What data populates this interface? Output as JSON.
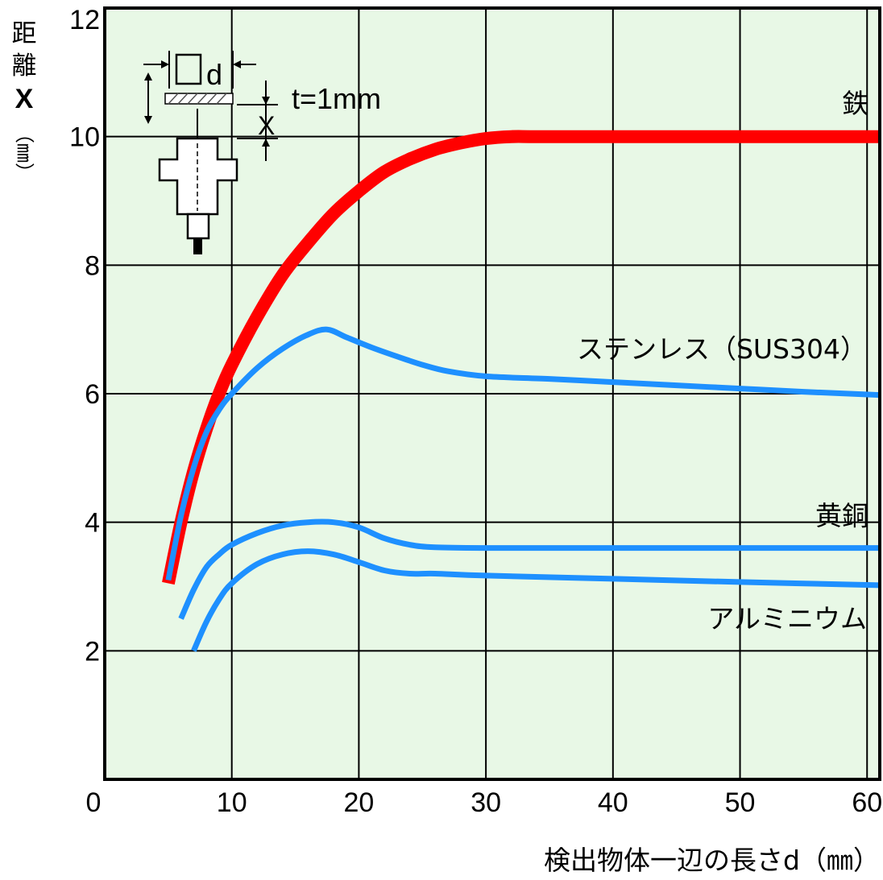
{
  "chart_data": {
    "type": "line",
    "xlabel": "検出物体一辺の長さd（㎜）",
    "ylabel": [
      "距",
      "離",
      "X",
      "（㎜）"
    ],
    "xlim": [
      0,
      61
    ],
    "ylim": [
      0,
      12
    ],
    "xticks": [
      "0",
      "10",
      "20",
      "30",
      "40",
      "50",
      "60"
    ],
    "yticks": [
      "2",
      "4",
      "6",
      "8",
      "10",
      "12"
    ],
    "grid": true,
    "background_color": "#e8f8e6",
    "series": [
      {
        "name": "鉄",
        "color": "#ff0000",
        "x": [
          5,
          6,
          7,
          8,
          9,
          10,
          12,
          14,
          16,
          18,
          20,
          22,
          24,
          26,
          28,
          30,
          32,
          34,
          40,
          50,
          61
        ],
        "y": [
          3.05,
          4.0,
          4.8,
          5.45,
          6.0,
          6.45,
          7.2,
          7.85,
          8.35,
          8.8,
          9.15,
          9.45,
          9.65,
          9.8,
          9.9,
          9.97,
          10.0,
          10.0,
          10.0,
          10.0,
          10.0
        ]
      },
      {
        "name": "ステンレス（SUS304）",
        "color": "#1e90ff",
        "x": [
          5,
          6,
          7,
          8,
          9,
          10,
          12,
          14,
          16,
          17.5,
          19,
          21,
          23,
          25,
          27,
          30,
          35,
          40,
          45,
          50,
          55,
          61
        ],
        "y": [
          3.1,
          4.1,
          4.85,
          5.4,
          5.75,
          6.0,
          6.4,
          6.7,
          6.92,
          7.0,
          6.88,
          6.72,
          6.58,
          6.45,
          6.35,
          6.27,
          6.23,
          6.18,
          6.13,
          6.08,
          6.03,
          5.98
        ]
      },
      {
        "name": "黄銅",
        "color": "#1e90ff",
        "x": [
          6,
          7,
          8,
          9,
          10,
          12,
          14,
          16,
          18,
          20,
          22,
          24,
          26,
          30,
          40,
          50,
          61
        ],
        "y": [
          2.5,
          2.95,
          3.3,
          3.5,
          3.65,
          3.83,
          3.95,
          4.0,
          4.0,
          3.92,
          3.75,
          3.65,
          3.61,
          3.6,
          3.6,
          3.6,
          3.6
        ]
      },
      {
        "name": "アルミニウム",
        "color": "#1e90ff",
        "x": [
          7,
          8,
          9,
          10,
          12,
          14,
          16,
          18,
          20,
          22,
          24,
          26,
          30,
          40,
          50,
          61
        ],
        "y": [
          2.0,
          2.45,
          2.8,
          3.05,
          3.35,
          3.5,
          3.55,
          3.5,
          3.38,
          3.25,
          3.2,
          3.2,
          3.17,
          3.12,
          3.07,
          3.02
        ]
      }
    ],
    "inset": {
      "d_label": "d",
      "t_label": "t=1mm",
      "x_label": "X"
    }
  }
}
